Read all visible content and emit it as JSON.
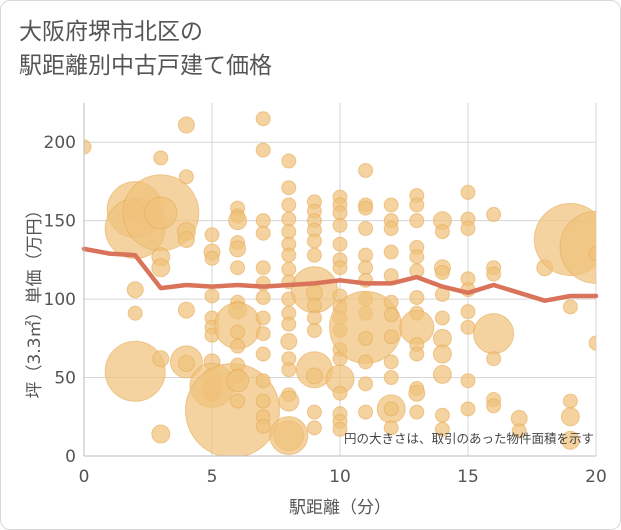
{
  "chart_data": {
    "type": "scatter",
    "title_lines": [
      "大阪府堺市北区の",
      "駅距離別中古戸建て価格"
    ],
    "xlabel": "駅距離（分）",
    "ylabel": "坪（3.3㎡）単価（万円）",
    "xlim": [
      0,
      20
    ],
    "ylim": [
      0,
      225
    ],
    "xticks": [
      0,
      5,
      10,
      15,
      20
    ],
    "yticks": [
      0,
      50,
      100,
      150,
      200
    ],
    "grid": true,
    "legend": "none",
    "annotation": "円の大きさは、取引のあった物件面積を示す",
    "colors": {
      "bubble": "#f0c27b",
      "bubble_stroke": "#e6ac59",
      "line": "#d9735a",
      "grid": "#d6d6d6"
    },
    "bubbles": [
      {
        "x": 0,
        "y": 197,
        "r": 7
      },
      {
        "x": 2,
        "y": 157,
        "r": 28
      },
      {
        "x": 2,
        "y": 145,
        "r": 30
      },
      {
        "x": 2,
        "y": 106,
        "r": 8
      },
      {
        "x": 2,
        "y": 91,
        "r": 7
      },
      {
        "x": 2,
        "y": 54,
        "r": 30
      },
      {
        "x": 2,
        "y": 157,
        "r": 9
      },
      {
        "x": 3,
        "y": 155,
        "r": 38
      },
      {
        "x": 3,
        "y": 155,
        "r": 16
      },
      {
        "x": 3,
        "y": 127,
        "r": 9
      },
      {
        "x": 3,
        "y": 190,
        "r": 7
      },
      {
        "x": 3,
        "y": 120,
        "r": 9
      },
      {
        "x": 3,
        "y": 62,
        "r": 8
      },
      {
        "x": 3,
        "y": 14,
        "r": 9
      },
      {
        "x": 4,
        "y": 211,
        "r": 8
      },
      {
        "x": 4,
        "y": 178,
        "r": 7
      },
      {
        "x": 4,
        "y": 143,
        "r": 9
      },
      {
        "x": 4,
        "y": 138,
        "r": 8
      },
      {
        "x": 4,
        "y": 93,
        "r": 8
      },
      {
        "x": 4,
        "y": 60,
        "r": 16
      },
      {
        "x": 4,
        "y": 59,
        "r": 8
      },
      {
        "x": 5,
        "y": 141,
        "r": 7
      },
      {
        "x": 5,
        "y": 130,
        "r": 8
      },
      {
        "x": 5,
        "y": 126,
        "r": 7
      },
      {
        "x": 5,
        "y": 102,
        "r": 7
      },
      {
        "x": 5,
        "y": 88,
        "r": 7
      },
      {
        "x": 5,
        "y": 82,
        "r": 7
      },
      {
        "x": 5,
        "y": 77,
        "r": 7
      },
      {
        "x": 5,
        "y": 60,
        "r": 8
      },
      {
        "x": 5,
        "y": 50,
        "r": 9
      },
      {
        "x": 5,
        "y": 43,
        "r": 10
      },
      {
        "x": 5,
        "y": 40,
        "r": 8
      },
      {
        "x": 5,
        "y": 45,
        "r": 22
      },
      {
        "x": 5.8,
        "y": 29,
        "r": 47
      },
      {
        "x": 6,
        "y": 158,
        "r": 7
      },
      {
        "x": 6,
        "y": 153,
        "r": 7
      },
      {
        "x": 6,
        "y": 150,
        "r": 9
      },
      {
        "x": 6,
        "y": 136,
        "r": 7
      },
      {
        "x": 6,
        "y": 132,
        "r": 8
      },
      {
        "x": 6,
        "y": 120,
        "r": 7
      },
      {
        "x": 6,
        "y": 98,
        "r": 7
      },
      {
        "x": 6,
        "y": 93,
        "r": 9
      },
      {
        "x": 6,
        "y": 83,
        "r": 23
      },
      {
        "x": 6,
        "y": 79,
        "r": 7
      },
      {
        "x": 6,
        "y": 70,
        "r": 7
      },
      {
        "x": 6,
        "y": 58,
        "r": 7
      },
      {
        "x": 6,
        "y": 51,
        "r": 7
      },
      {
        "x": 6,
        "y": 48,
        "r": 11
      },
      {
        "x": 6,
        "y": 35,
        "r": 7
      },
      {
        "x": 7,
        "y": 215,
        "r": 7
      },
      {
        "x": 7,
        "y": 195,
        "r": 7
      },
      {
        "x": 7,
        "y": 150,
        "r": 7
      },
      {
        "x": 7,
        "y": 142,
        "r": 7
      },
      {
        "x": 7,
        "y": 120,
        "r": 7
      },
      {
        "x": 7,
        "y": 110,
        "r": 7
      },
      {
        "x": 7,
        "y": 101,
        "r": 7
      },
      {
        "x": 7,
        "y": 88,
        "r": 7
      },
      {
        "x": 7,
        "y": 78,
        "r": 7
      },
      {
        "x": 7,
        "y": 65,
        "r": 7
      },
      {
        "x": 7,
        "y": 48,
        "r": 7
      },
      {
        "x": 7,
        "y": 35,
        "r": 7
      },
      {
        "x": 7,
        "y": 25,
        "r": 7
      },
      {
        "x": 7,
        "y": 19,
        "r": 7
      },
      {
        "x": 8,
        "y": 188,
        "r": 7
      },
      {
        "x": 8,
        "y": 171,
        "r": 7
      },
      {
        "x": 8,
        "y": 160,
        "r": 7
      },
      {
        "x": 8,
        "y": 151,
        "r": 7
      },
      {
        "x": 8,
        "y": 143,
        "r": 7
      },
      {
        "x": 8,
        "y": 135,
        "r": 7
      },
      {
        "x": 8,
        "y": 128,
        "r": 7
      },
      {
        "x": 8,
        "y": 119,
        "r": 7
      },
      {
        "x": 8,
        "y": 111,
        "r": 7
      },
      {
        "x": 8,
        "y": 100,
        "r": 7
      },
      {
        "x": 8,
        "y": 91,
        "r": 7
      },
      {
        "x": 8,
        "y": 84,
        "r": 7
      },
      {
        "x": 8,
        "y": 73,
        "r": 8
      },
      {
        "x": 8,
        "y": 62,
        "r": 7
      },
      {
        "x": 8,
        "y": 55,
        "r": 7
      },
      {
        "x": 8,
        "y": 39,
        "r": 7
      },
      {
        "x": 8,
        "y": 35,
        "r": 10
      },
      {
        "x": 8,
        "y": 13,
        "r": 15
      },
      {
        "x": 8,
        "y": 13,
        "r": 19
      },
      {
        "x": 9,
        "y": 162,
        "r": 7
      },
      {
        "x": 9,
        "y": 156,
        "r": 7
      },
      {
        "x": 9,
        "y": 150,
        "r": 7
      },
      {
        "x": 9,
        "y": 144,
        "r": 7
      },
      {
        "x": 9,
        "y": 137,
        "r": 7
      },
      {
        "x": 9,
        "y": 128,
        "r": 7
      },
      {
        "x": 9,
        "y": 106,
        "r": 23
      },
      {
        "x": 9,
        "y": 104,
        "r": 8
      },
      {
        "x": 9,
        "y": 96,
        "r": 7
      },
      {
        "x": 9,
        "y": 88,
        "r": 7
      },
      {
        "x": 9,
        "y": 80,
        "r": 7
      },
      {
        "x": 9,
        "y": 55,
        "r": 18
      },
      {
        "x": 9,
        "y": 51,
        "r": 8
      },
      {
        "x": 9,
        "y": 28,
        "r": 7
      },
      {
        "x": 9,
        "y": 18,
        "r": 7
      },
      {
        "x": 10,
        "y": 165,
        "r": 7
      },
      {
        "x": 10,
        "y": 160,
        "r": 7
      },
      {
        "x": 10,
        "y": 155,
        "r": 7
      },
      {
        "x": 10,
        "y": 147,
        "r": 7
      },
      {
        "x": 10,
        "y": 135,
        "r": 7
      },
      {
        "x": 10,
        "y": 125,
        "r": 7
      },
      {
        "x": 10,
        "y": 120,
        "r": 7
      },
      {
        "x": 10,
        "y": 102,
        "r": 7
      },
      {
        "x": 10,
        "y": 95,
        "r": 7
      },
      {
        "x": 10,
        "y": 88,
        "r": 7
      },
      {
        "x": 10,
        "y": 80,
        "r": 7
      },
      {
        "x": 10,
        "y": 68,
        "r": 7
      },
      {
        "x": 10,
        "y": 62,
        "r": 7
      },
      {
        "x": 10,
        "y": 49,
        "r": 14
      },
      {
        "x": 10,
        "y": 40,
        "r": 7
      },
      {
        "x": 10,
        "y": 27,
        "r": 7
      },
      {
        "x": 10,
        "y": 22,
        "r": 7
      },
      {
        "x": 10,
        "y": 17,
        "r": 7
      },
      {
        "x": 11,
        "y": 182,
        "r": 7
      },
      {
        "x": 11,
        "y": 160,
        "r": 7
      },
      {
        "x": 11,
        "y": 158,
        "r": 7
      },
      {
        "x": 11,
        "y": 145,
        "r": 7
      },
      {
        "x": 11,
        "y": 128,
        "r": 7
      },
      {
        "x": 11,
        "y": 120,
        "r": 7
      },
      {
        "x": 11,
        "y": 112,
        "r": 7
      },
      {
        "x": 11,
        "y": 100,
        "r": 7
      },
      {
        "x": 11,
        "y": 91,
        "r": 7
      },
      {
        "x": 11,
        "y": 82,
        "r": 36
      },
      {
        "x": 11,
        "y": 75,
        "r": 7
      },
      {
        "x": 11,
        "y": 60,
        "r": 7
      },
      {
        "x": 11,
        "y": 46,
        "r": 7
      },
      {
        "x": 11,
        "y": 28,
        "r": 7
      },
      {
        "x": 12,
        "y": 160,
        "r": 7
      },
      {
        "x": 12,
        "y": 150,
        "r": 7
      },
      {
        "x": 12,
        "y": 145,
        "r": 7
      },
      {
        "x": 12,
        "y": 130,
        "r": 7
      },
      {
        "x": 12,
        "y": 115,
        "r": 7
      },
      {
        "x": 12,
        "y": 98,
        "r": 7
      },
      {
        "x": 12,
        "y": 90,
        "r": 7
      },
      {
        "x": 12,
        "y": 76,
        "r": 7
      },
      {
        "x": 12,
        "y": 60,
        "r": 7
      },
      {
        "x": 12,
        "y": 50,
        "r": 7
      },
      {
        "x": 12,
        "y": 30,
        "r": 14
      },
      {
        "x": 12,
        "y": 30,
        "r": 7
      },
      {
        "x": 12,
        "y": 18,
        "r": 7
      },
      {
        "x": 13,
        "y": 166,
        "r": 7
      },
      {
        "x": 13,
        "y": 160,
        "r": 7
      },
      {
        "x": 13,
        "y": 150,
        "r": 7
      },
      {
        "x": 13,
        "y": 133,
        "r": 7
      },
      {
        "x": 13,
        "y": 127,
        "r": 7
      },
      {
        "x": 13,
        "y": 118,
        "r": 7
      },
      {
        "x": 13,
        "y": 101,
        "r": 7
      },
      {
        "x": 13,
        "y": 91,
        "r": 7
      },
      {
        "x": 13,
        "y": 82,
        "r": 17
      },
      {
        "x": 13,
        "y": 71,
        "r": 7
      },
      {
        "x": 13,
        "y": 65,
        "r": 7
      },
      {
        "x": 13,
        "y": 43,
        "r": 7
      },
      {
        "x": 13,
        "y": 40,
        "r": 8
      },
      {
        "x": 13,
        "y": 28,
        "r": 7
      },
      {
        "x": 14,
        "y": 150,
        "r": 9
      },
      {
        "x": 14,
        "y": 143,
        "r": 7
      },
      {
        "x": 14,
        "y": 120,
        "r": 8
      },
      {
        "x": 14,
        "y": 117,
        "r": 7
      },
      {
        "x": 14,
        "y": 103,
        "r": 7
      },
      {
        "x": 14,
        "y": 88,
        "r": 7
      },
      {
        "x": 14,
        "y": 75,
        "r": 9
      },
      {
        "x": 14,
        "y": 65,
        "r": 9
      },
      {
        "x": 14,
        "y": 52,
        "r": 9
      },
      {
        "x": 14,
        "y": 26,
        "r": 7
      },
      {
        "x": 14,
        "y": 17,
        "r": 7
      },
      {
        "x": 15,
        "y": 168,
        "r": 7
      },
      {
        "x": 15,
        "y": 151,
        "r": 7
      },
      {
        "x": 15,
        "y": 145,
        "r": 7
      },
      {
        "x": 15,
        "y": 113,
        "r": 7
      },
      {
        "x": 15,
        "y": 106,
        "r": 7
      },
      {
        "x": 15,
        "y": 92,
        "r": 7
      },
      {
        "x": 15,
        "y": 82,
        "r": 7
      },
      {
        "x": 15,
        "y": 48,
        "r": 7
      },
      {
        "x": 15,
        "y": 30,
        "r": 7
      },
      {
        "x": 16,
        "y": 154,
        "r": 7
      },
      {
        "x": 16,
        "y": 120,
        "r": 7
      },
      {
        "x": 16,
        "y": 116,
        "r": 7
      },
      {
        "x": 16,
        "y": 78,
        "r": 20
      },
      {
        "x": 16,
        "y": 62,
        "r": 7
      },
      {
        "x": 16,
        "y": 36,
        "r": 7
      },
      {
        "x": 16,
        "y": 32,
        "r": 7
      },
      {
        "x": 17,
        "y": 24,
        "r": 8
      },
      {
        "x": 17,
        "y": 16,
        "r": 7
      },
      {
        "x": 18,
        "y": 120,
        "r": 8
      },
      {
        "x": 19,
        "y": 138,
        "r": 36
      },
      {
        "x": 19,
        "y": 95,
        "r": 7
      },
      {
        "x": 19,
        "y": 35,
        "r": 7
      },
      {
        "x": 19,
        "y": 25,
        "r": 9
      },
      {
        "x": 19,
        "y": 10,
        "r": 9
      },
      {
        "x": 20,
        "y": 133,
        "r": 36
      },
      {
        "x": 20,
        "y": 129,
        "r": 7
      },
      {
        "x": 20,
        "y": 72,
        "r": 7
      }
    ],
    "series": [
      {
        "x": [
          0,
          1,
          2,
          3,
          4,
          5,
          6,
          7,
          8,
          9,
          10,
          11,
          12,
          13,
          14,
          15,
          16,
          17,
          18,
          19,
          20
        ],
        "values": [
          132,
          129,
          128,
          107,
          109,
          108,
          109,
          108,
          109,
          110,
          112,
          110,
          110,
          114,
          108,
          104,
          109,
          104,
          99,
          102,
          102
        ]
      }
    ]
  }
}
